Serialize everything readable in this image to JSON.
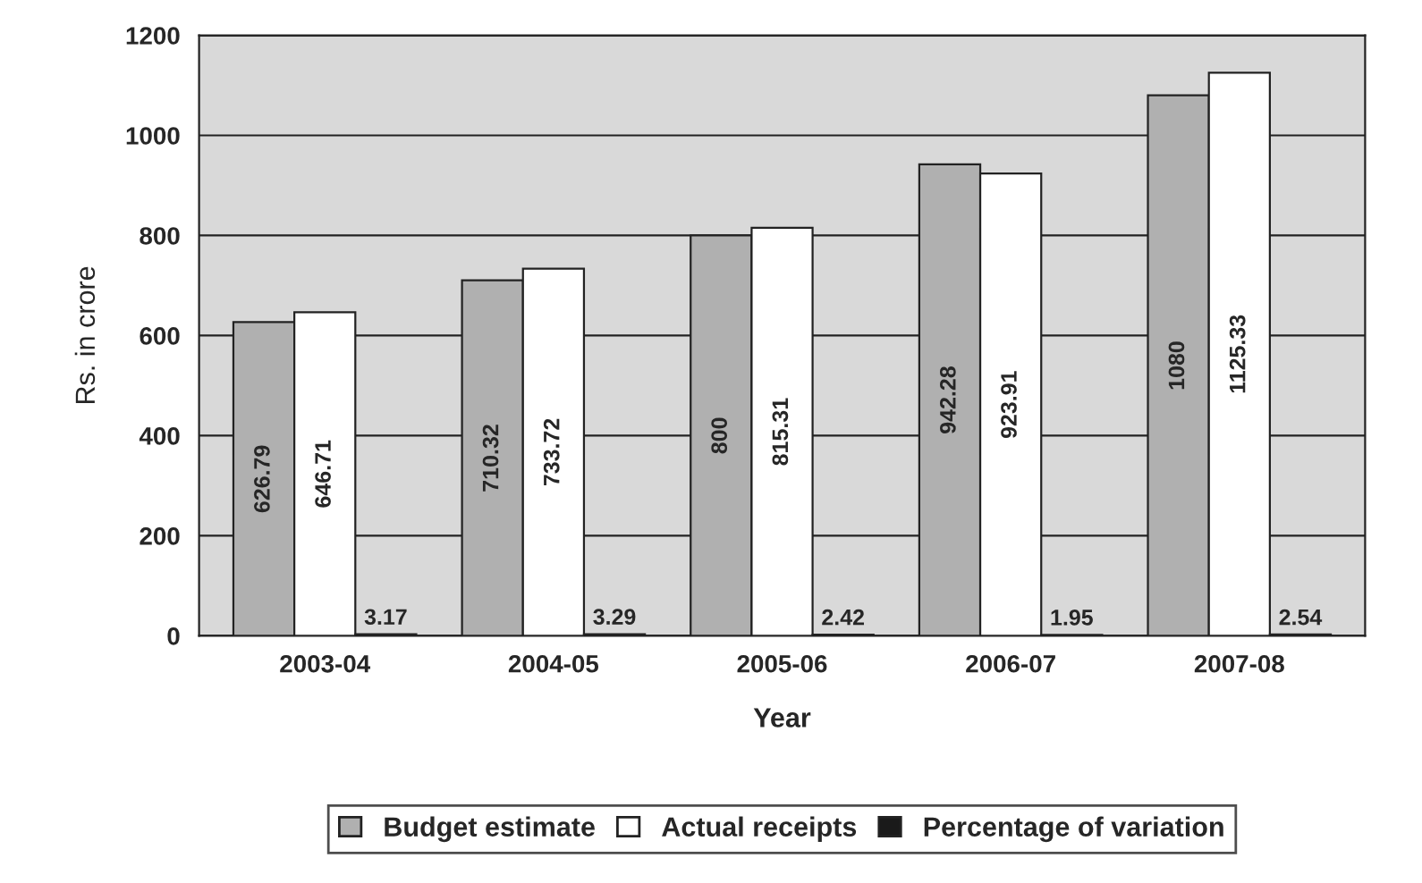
{
  "chart_data": {
    "type": "bar",
    "xlabel": "Year",
    "ylabel": "Rs. in crore",
    "categories": [
      "2003-04",
      "2004-05",
      "2005-06",
      "2006-07",
      "2007-08"
    ],
    "series": [
      {
        "name": "Budget estimate",
        "color": "#b0b0b0",
        "values": [
          626.79,
          710.32,
          800,
          942.28,
          1080
        ]
      },
      {
        "name": "Actual receipts",
        "color": "#ffffff",
        "values": [
          646.71,
          733.72,
          815.31,
          923.91,
          1125.33
        ]
      },
      {
        "name": "Percentage of variation",
        "color": "#1a1a1a",
        "values": [
          3.17,
          3.29,
          2.42,
          1.95,
          2.54
        ]
      }
    ],
    "ylim": [
      0,
      1200
    ],
    "yticks": [
      0,
      200,
      400,
      600,
      800,
      1000,
      1200
    ],
    "grid": "y",
    "legend": "bottom",
    "data_labels": true
  }
}
